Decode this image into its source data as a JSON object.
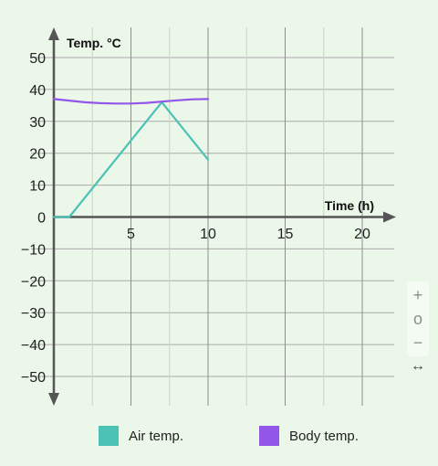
{
  "chart_data": {
    "type": "line",
    "title": "",
    "xlabel": "Time (h)",
    "ylabel": "Temp. °C",
    "xlim": [
      -0.3,
      21
    ],
    "ylim": [
      -58,
      58
    ],
    "x_ticks": [
      5,
      10,
      15,
      20
    ],
    "y_ticks": [
      -50,
      -40,
      -30,
      -20,
      -10,
      0,
      10,
      20,
      30,
      40,
      50
    ],
    "origin_label": "0",
    "grid": true,
    "legend_position": "bottom",
    "series": [
      {
        "name": "Air temp.",
        "color": "#4cc2b4",
        "x": [
          0,
          1,
          7,
          10
        ],
        "y": [
          0,
          0,
          36,
          18
        ]
      },
      {
        "name": "Body temp.",
        "color": "#9256e8",
        "x": [
          0,
          1,
          2,
          3,
          4,
          5,
          6,
          7,
          8,
          9,
          10
        ],
        "y": [
          37,
          36.5,
          36,
          35.7,
          35.6,
          35.6,
          35.8,
          36.2,
          36.6,
          36.9,
          37
        ]
      }
    ]
  },
  "controls": {
    "zoom_in_icon": "plus-icon",
    "zoom_reset_icon": "circle-icon",
    "zoom_out_icon": "minus-icon",
    "pan_icon": "horizontal-arrows-icon",
    "zoom_in": "+",
    "zoom_reset": "o",
    "zoom_out": "−",
    "pan": "↔"
  }
}
